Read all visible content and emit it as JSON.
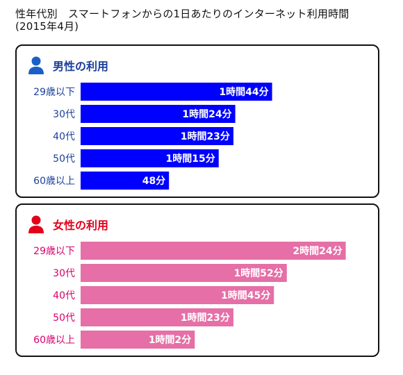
{
  "title": "性年代別　スマートフォンからの1日あたりのインターネット利用時間\n(2015年4月)",
  "colors": {
    "male_bar": "#0000ff",
    "male_label": "#1a3f9a",
    "female_bar": "#e56fa6",
    "female_label": "#d8006b",
    "female_title": "#e3001b"
  },
  "icons": {
    "male": "person-blue-icon",
    "female": "person-red-icon"
  },
  "chart_data": [
    {
      "type": "bar",
      "orientation": "horizontal",
      "title": "男性の利用",
      "categories": [
        "29歳以下",
        "30代",
        "40代",
        "50代",
        "60歳以上"
      ],
      "values": [
        104,
        84,
        83,
        75,
        48
      ],
      "value_unit": "minutes",
      "value_labels": [
        "1時間44分",
        "1時間24分",
        "1時間23分",
        "1時間15分",
        "48分"
      ],
      "grid": false
    },
    {
      "type": "bar",
      "orientation": "horizontal",
      "title": "女性の利用",
      "categories": [
        "29歳以下",
        "30代",
        "40代",
        "50代",
        "60歳以上"
      ],
      "values": [
        144,
        112,
        105,
        83,
        62
      ],
      "value_unit": "minutes",
      "value_labels": [
        "2時間24分",
        "1時間52分",
        "1時間45分",
        "1時間23分",
        "1時間2分"
      ],
      "grid": false
    }
  ]
}
